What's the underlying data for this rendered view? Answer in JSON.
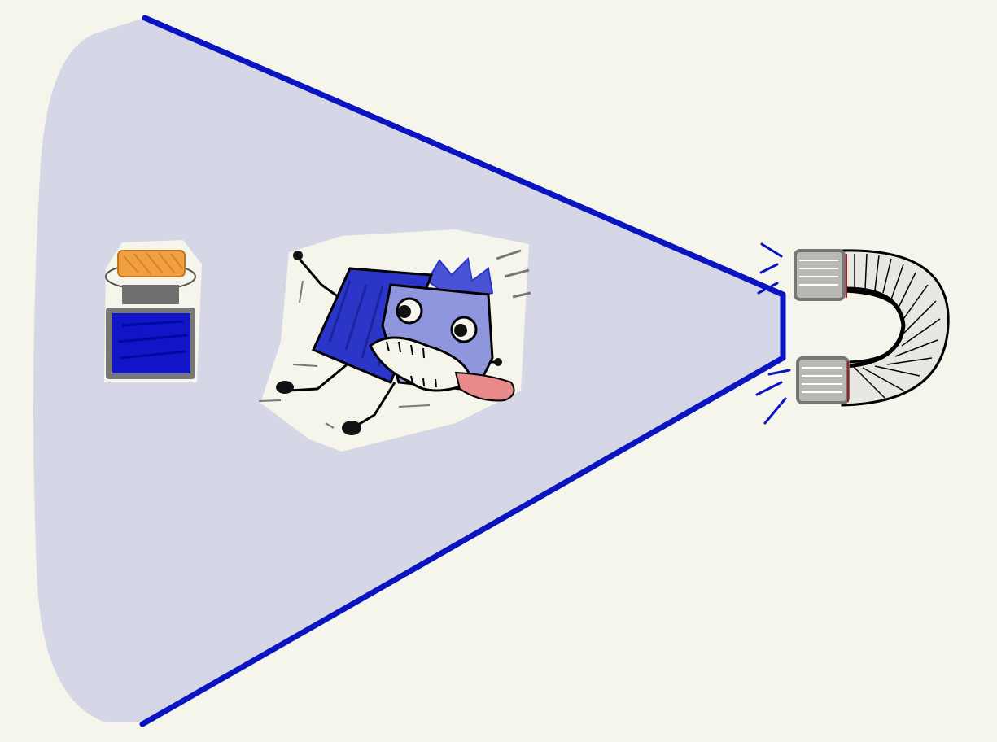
{
  "illustration": {
    "description_icons": [
      "magnet-icon",
      "cube-character-icon",
      "jar-icon"
    ],
    "colors": {
      "background": "#f5f5ec",
      "field_fill": "#d5d7e6",
      "field_outline": "#0a14c0",
      "cube_dark": "#2b36c9",
      "cube_light": "#8f96dd",
      "jar_lid": "#f0a040",
      "jar_body": "#1214c8",
      "magnet_grey": "#8a8a8a",
      "tongue": "#e88a8a"
    }
  }
}
